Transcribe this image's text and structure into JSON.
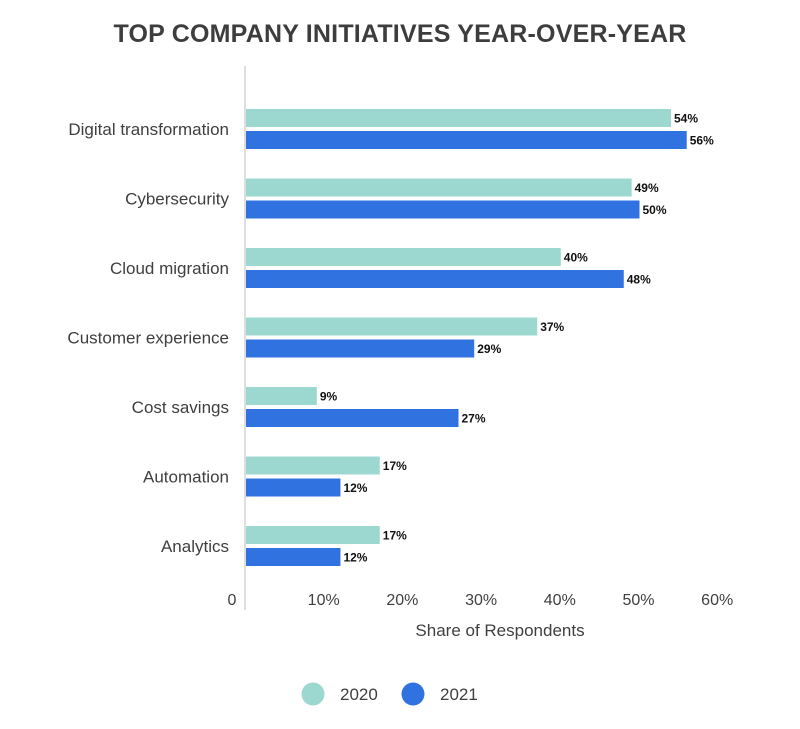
{
  "chart_data": {
    "type": "bar",
    "orientation": "horizontal",
    "title": "TOP COMPANY INITIATIVES YEAR-OVER-YEAR",
    "xlabel": "Share of Respondents",
    "ylabel": "",
    "categories": [
      "Digital transformation",
      "Cybersecurity",
      "Cloud migration",
      "Customer experience",
      "Cost savings",
      "Automation",
      "Analytics"
    ],
    "series": [
      {
        "name": "2020",
        "color": "#9dd8d0",
        "values": [
          54,
          49,
          40,
          37,
          9,
          17,
          17
        ],
        "labels": [
          "54%",
          "49%",
          "40%",
          "37%",
          "9%",
          "17%",
          "17%"
        ]
      },
      {
        "name": "2021",
        "color": "#2f72e0",
        "values": [
          56,
          50,
          48,
          29,
          27,
          12,
          12
        ],
        "labels": [
          "56%",
          "50%",
          "48%",
          "29%",
          "27%",
          "12%",
          "12%"
        ]
      }
    ],
    "x_ticks": [
      "0",
      "10%",
      "20%",
      "30%",
      "40%",
      "50%",
      "60%"
    ],
    "xlim": [
      0,
      60
    ],
    "grid": false,
    "legend_position": "bottom"
  }
}
